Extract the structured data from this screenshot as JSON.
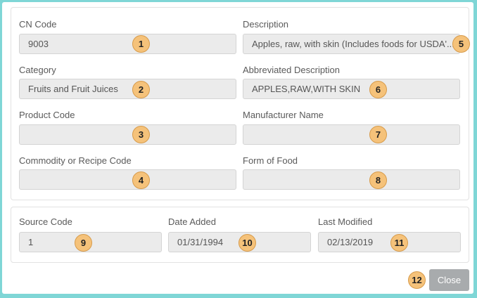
{
  "fields_top": {
    "cn_code": {
      "label": "CN Code",
      "value": "9003",
      "badge": "1"
    },
    "category": {
      "label": "Category",
      "value": "Fruits and Fruit Juices",
      "badge": "2"
    },
    "product_code": {
      "label": "Product Code",
      "value": "",
      "badge": "3"
    },
    "commodity_code": {
      "label": "Commodity or Recipe Code",
      "value": "",
      "badge": "4"
    },
    "description": {
      "label": "Description",
      "value": "Apples, raw, with skin (Includes foods for USDA'...",
      "badge": "5"
    },
    "abbrev_description": {
      "label": "Abbreviated Description",
      "value": "APPLES,RAW,WITH SKIN",
      "badge": "6"
    },
    "manufacturer": {
      "label": "Manufacturer Name",
      "value": "",
      "badge": "7"
    },
    "form_of_food": {
      "label": "Form of Food",
      "value": "",
      "badge": "8"
    }
  },
  "fields_bottom": {
    "source_code": {
      "label": "Source Code",
      "value": "1",
      "badge": "9"
    },
    "date_added": {
      "label": "Date Added",
      "value": "01/31/1994",
      "badge": "10"
    },
    "last_modified": {
      "label": "Last Modified",
      "value": "02/13/2019",
      "badge": "11"
    }
  },
  "footer": {
    "close_label": "Close",
    "close_badge": "12"
  }
}
